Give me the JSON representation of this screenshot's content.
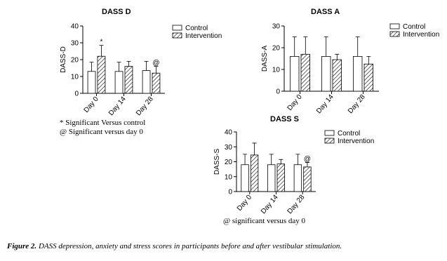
{
  "chart_data": [
    {
      "type": "bar",
      "title": "DASS D",
      "y_label": "DASS-D",
      "categories": [
        "Day 0",
        "Day 14",
        "Day 28"
      ],
      "series": [
        {
          "name": "Control",
          "color": "#ffffff",
          "hatch": false,
          "values": [
            13,
            13,
            13.5
          ],
          "errors": [
            5.5,
            5.5,
            5.5
          ],
          "markers": [
            null,
            null,
            null
          ]
        },
        {
          "name": "Intervention",
          "color": "#ffffff",
          "hatch": true,
          "values": [
            22,
            16,
            12
          ],
          "errors": [
            6.5,
            3,
            4
          ],
          "markers": [
            "*",
            null,
            "@"
          ]
        }
      ],
      "ylim": [
        0,
        40
      ],
      "yticks": [
        0,
        10,
        20,
        30,
        40
      ],
      "notes": [
        "* Significant Versus control",
        "@ Significant versus day 0"
      ]
    },
    {
      "type": "bar",
      "title": "DASS A",
      "y_label": "DASS-A",
      "categories": [
        "Day 0",
        "Day 14",
        "Day 28"
      ],
      "series": [
        {
          "name": "Control",
          "color": "#ffffff",
          "hatch": false,
          "values": [
            16,
            16,
            16
          ],
          "errors": [
            9,
            9,
            9
          ],
          "markers": [
            null,
            null,
            null
          ]
        },
        {
          "name": "Intervention",
          "color": "#ffffff",
          "hatch": true,
          "values": [
            17,
            14.5,
            12.5
          ],
          "errors": [
            8,
            2.5,
            3.5
          ],
          "markers": [
            null,
            null,
            null
          ]
        }
      ],
      "ylim": [
        0,
        30
      ],
      "yticks": [
        0,
        10,
        20,
        30
      ],
      "notes": []
    },
    {
      "type": "bar",
      "title": "DASS S",
      "y_label": "DASS-S",
      "categories": [
        "Day 0",
        "Day 14",
        "Day 28"
      ],
      "series": [
        {
          "name": "Control",
          "color": "#ffffff",
          "hatch": false,
          "values": [
            18,
            18,
            18
          ],
          "errors": [
            7,
            7,
            7
          ],
          "markers": [
            null,
            null,
            null
          ]
        },
        {
          "name": "Intervention",
          "color": "#ffffff",
          "hatch": true,
          "values": [
            24.5,
            18.5,
            16.5
          ],
          "errors": [
            8,
            3,
            3
          ],
          "markers": [
            null,
            null,
            "@"
          ]
        }
      ],
      "ylim": [
        0,
        40
      ],
      "yticks": [
        0,
        10,
        20,
        30,
        40
      ],
      "notes": [
        "@ significant versus day 0"
      ]
    }
  ],
  "caption_label": "Figure 2.",
  "caption_text": "DASS depression, anxiety and stress scores in participants before and after vestibular stimulation."
}
